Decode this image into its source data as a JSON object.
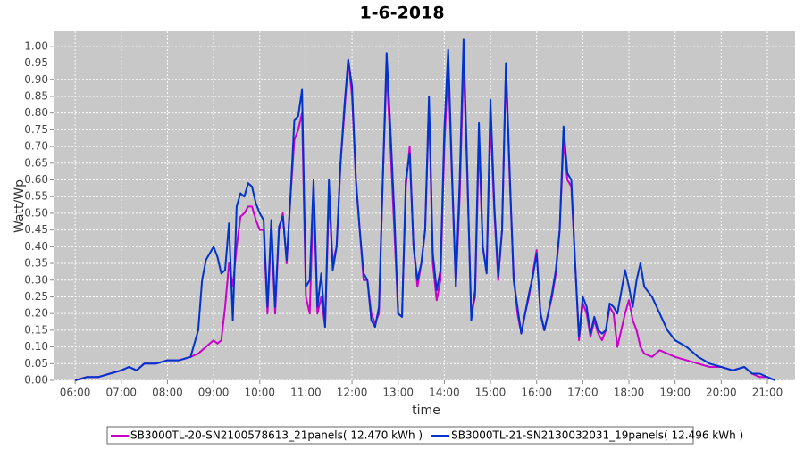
{
  "chart_data": {
    "type": "line",
    "title": "1-6-2018",
    "x_label": "time",
    "y_label": "Watt/Wp",
    "x": [
      "06:00",
      "06:15",
      "06:30",
      "06:45",
      "07:00",
      "07:10",
      "07:20",
      "07:30",
      "07:45",
      "08:00",
      "08:15",
      "08:30",
      "08:40",
      "08:45",
      "08:50",
      "08:55",
      "09:00",
      "09:05",
      "09:10",
      "09:15",
      "09:20",
      "09:25",
      "09:30",
      "09:35",
      "09:40",
      "09:45",
      "09:50",
      "09:55",
      "10:00",
      "10:05",
      "10:10",
      "10:15",
      "10:20",
      "10:25",
      "10:30",
      "10:35",
      "10:40",
      "10:45",
      "10:50",
      "10:55",
      "11:00",
      "11:05",
      "11:10",
      "11:15",
      "11:20",
      "11:25",
      "11:30",
      "11:35",
      "11:40",
      "11:45",
      "11:50",
      "11:55",
      "12:00",
      "12:05",
      "12:10",
      "12:15",
      "12:20",
      "12:25",
      "12:30",
      "12:35",
      "12:40",
      "12:45",
      "12:50",
      "12:55",
      "13:00",
      "13:05",
      "13:10",
      "13:15",
      "13:20",
      "13:25",
      "13:30",
      "13:35",
      "13:40",
      "13:45",
      "13:50",
      "13:55",
      "14:00",
      "14:05",
      "14:10",
      "14:15",
      "14:20",
      "14:25",
      "14:30",
      "14:35",
      "14:40",
      "14:45",
      "14:50",
      "14:55",
      "15:00",
      "15:05",
      "15:10",
      "15:15",
      "15:20",
      "15:25",
      "15:30",
      "15:35",
      "15:40",
      "15:45",
      "15:50",
      "15:55",
      "16:00",
      "16:05",
      "16:10",
      "16:15",
      "16:20",
      "16:25",
      "16:30",
      "16:35",
      "16:40",
      "16:45",
      "16:50",
      "16:55",
      "17:00",
      "17:05",
      "17:10",
      "17:15",
      "17:20",
      "17:25",
      "17:30",
      "17:35",
      "17:40",
      "17:45",
      "17:55",
      "18:00",
      "18:05",
      "18:10",
      "18:15",
      "18:20",
      "18:30",
      "18:40",
      "18:50",
      "19:00",
      "19:15",
      "19:30",
      "19:45",
      "20:00",
      "20:15",
      "20:30",
      "20:40",
      "20:50",
      "21:00",
      "21:10"
    ],
    "series": [
      {
        "name": "SB3000TL-20-SN2100578613_21panels( 12.470 kWh )",
        "color": "#cc00cc",
        "values": [
          0,
          0.01,
          0.01,
          0.02,
          0.03,
          0.04,
          0.03,
          0.05,
          0.05,
          0.06,
          0.06,
          0.07,
          0.08,
          0.09,
          0.1,
          0.11,
          0.12,
          0.11,
          0.12,
          0.22,
          0.35,
          0.28,
          0.4,
          0.49,
          0.5,
          0.52,
          0.52,
          0.48,
          0.45,
          0.45,
          0.2,
          0.45,
          0.2,
          0.45,
          0.5,
          0.35,
          0.55,
          0.72,
          0.75,
          0.8,
          0.25,
          0.2,
          0.58,
          0.2,
          0.25,
          0.16,
          0.55,
          0.35,
          0.4,
          0.65,
          0.8,
          0.96,
          0.85,
          0.6,
          0.45,
          0.3,
          0.3,
          0.2,
          0.17,
          0.2,
          0.6,
          0.93,
          0.7,
          0.45,
          0.2,
          0.19,
          0.58,
          0.7,
          0.4,
          0.28,
          0.35,
          0.45,
          0.82,
          0.35,
          0.24,
          0.3,
          0.7,
          0.95,
          0.6,
          0.28,
          0.55,
          0.96,
          0.6,
          0.2,
          0.25,
          0.72,
          0.4,
          0.33,
          0.78,
          0.5,
          0.3,
          0.45,
          0.93,
          0.6,
          0.32,
          0.2,
          0.14,
          0.2,
          0.25,
          0.32,
          0.39,
          0.2,
          0.15,
          0.2,
          0.25,
          0.32,
          0.45,
          0.72,
          0.6,
          0.58,
          0.35,
          0.12,
          0.23,
          0.2,
          0.13,
          0.18,
          0.14,
          0.12,
          0.15,
          0.22,
          0.2,
          0.1,
          0.2,
          0.24,
          0.18,
          0.15,
          0.1,
          0.08,
          0.07,
          0.09,
          0.08,
          0.07,
          0.06,
          0.05,
          0.04,
          0.04,
          0.03,
          0.04,
          0.02,
          0.01,
          0.01,
          0
        ]
      },
      {
        "name": "SB3000TL-21-SN2130032031_19panels( 12.496 kWh )",
        "color": "#0033cc",
        "values": [
          0,
          0.01,
          0.01,
          0.02,
          0.03,
          0.04,
          0.03,
          0.05,
          0.05,
          0.06,
          0.06,
          0.07,
          0.15,
          0.3,
          0.36,
          0.38,
          0.4,
          0.37,
          0.32,
          0.33,
          0.47,
          0.18,
          0.52,
          0.56,
          0.55,
          0.59,
          0.58,
          0.53,
          0.5,
          0.48,
          0.22,
          0.48,
          0.22,
          0.46,
          0.49,
          0.36,
          0.55,
          0.78,
          0.79,
          0.87,
          0.28,
          0.3,
          0.6,
          0.22,
          0.32,
          0.16,
          0.6,
          0.33,
          0.4,
          0.65,
          0.82,
          0.96,
          0.88,
          0.6,
          0.45,
          0.32,
          0.3,
          0.18,
          0.16,
          0.22,
          0.6,
          0.98,
          0.75,
          0.5,
          0.2,
          0.19,
          0.6,
          0.68,
          0.4,
          0.3,
          0.35,
          0.45,
          0.85,
          0.38,
          0.27,
          0.33,
          0.75,
          0.99,
          0.62,
          0.28,
          0.6,
          1.02,
          0.62,
          0.18,
          0.27,
          0.77,
          0.4,
          0.32,
          0.84,
          0.52,
          0.31,
          0.45,
          0.95,
          0.62,
          0.3,
          0.22,
          0.14,
          0.2,
          0.26,
          0.31,
          0.38,
          0.2,
          0.15,
          0.2,
          0.26,
          0.33,
          0.45,
          0.76,
          0.62,
          0.6,
          0.35,
          0.13,
          0.25,
          0.22,
          0.14,
          0.19,
          0.15,
          0.14,
          0.15,
          0.23,
          0.22,
          0.2,
          0.33,
          0.28,
          0.22,
          0.3,
          0.35,
          0.28,
          0.25,
          0.2,
          0.15,
          0.12,
          0.1,
          0.07,
          0.05,
          0.04,
          0.03,
          0.04,
          0.02,
          0.02,
          0.01,
          0
        ]
      }
    ],
    "xlim": [
      "05:32",
      "21:36"
    ],
    "xticks": [
      "06:00",
      "07:00",
      "08:00",
      "09:00",
      "10:00",
      "11:00",
      "12:00",
      "13:00",
      "14:00",
      "15:00",
      "16:00",
      "17:00",
      "18:00",
      "19:00",
      "20:00",
      "21:00"
    ],
    "ylim": [
      0,
      1.045
    ],
    "yticks": [
      {
        "value": 0,
        "label": "0.00"
      },
      {
        "value": 0.05,
        "label": "0.05"
      },
      {
        "value": 0.1,
        "label": "0.10"
      },
      {
        "value": 0.15,
        "label": "0.15"
      },
      {
        "value": 0.2,
        "label": "0.20"
      },
      {
        "value": 0.25,
        "label": "0.25"
      },
      {
        "value": 0.3,
        "label": "0.30"
      },
      {
        "value": 0.35,
        "label": "0.35"
      },
      {
        "value": 0.4,
        "label": "0.40"
      },
      {
        "value": 0.45,
        "label": "0.45"
      },
      {
        "value": 0.5,
        "label": "0.50"
      },
      {
        "value": 0.55,
        "label": "0.55"
      },
      {
        "value": 0.6,
        "label": "0.60"
      },
      {
        "value": 0.65,
        "label": "0.65"
      },
      {
        "value": 0.7,
        "label": "0.70"
      },
      {
        "value": 0.75,
        "label": "0.75"
      },
      {
        "value": 0.8,
        "label": "0.80"
      },
      {
        "value": 0.85,
        "label": "0.85"
      },
      {
        "value": 0.9,
        "label": "0.90"
      },
      {
        "value": 0.95,
        "label": "0.95"
      },
      {
        "value": 1,
        "label": "1.00"
      }
    ],
    "grid": true,
    "legend": "bottom"
  }
}
